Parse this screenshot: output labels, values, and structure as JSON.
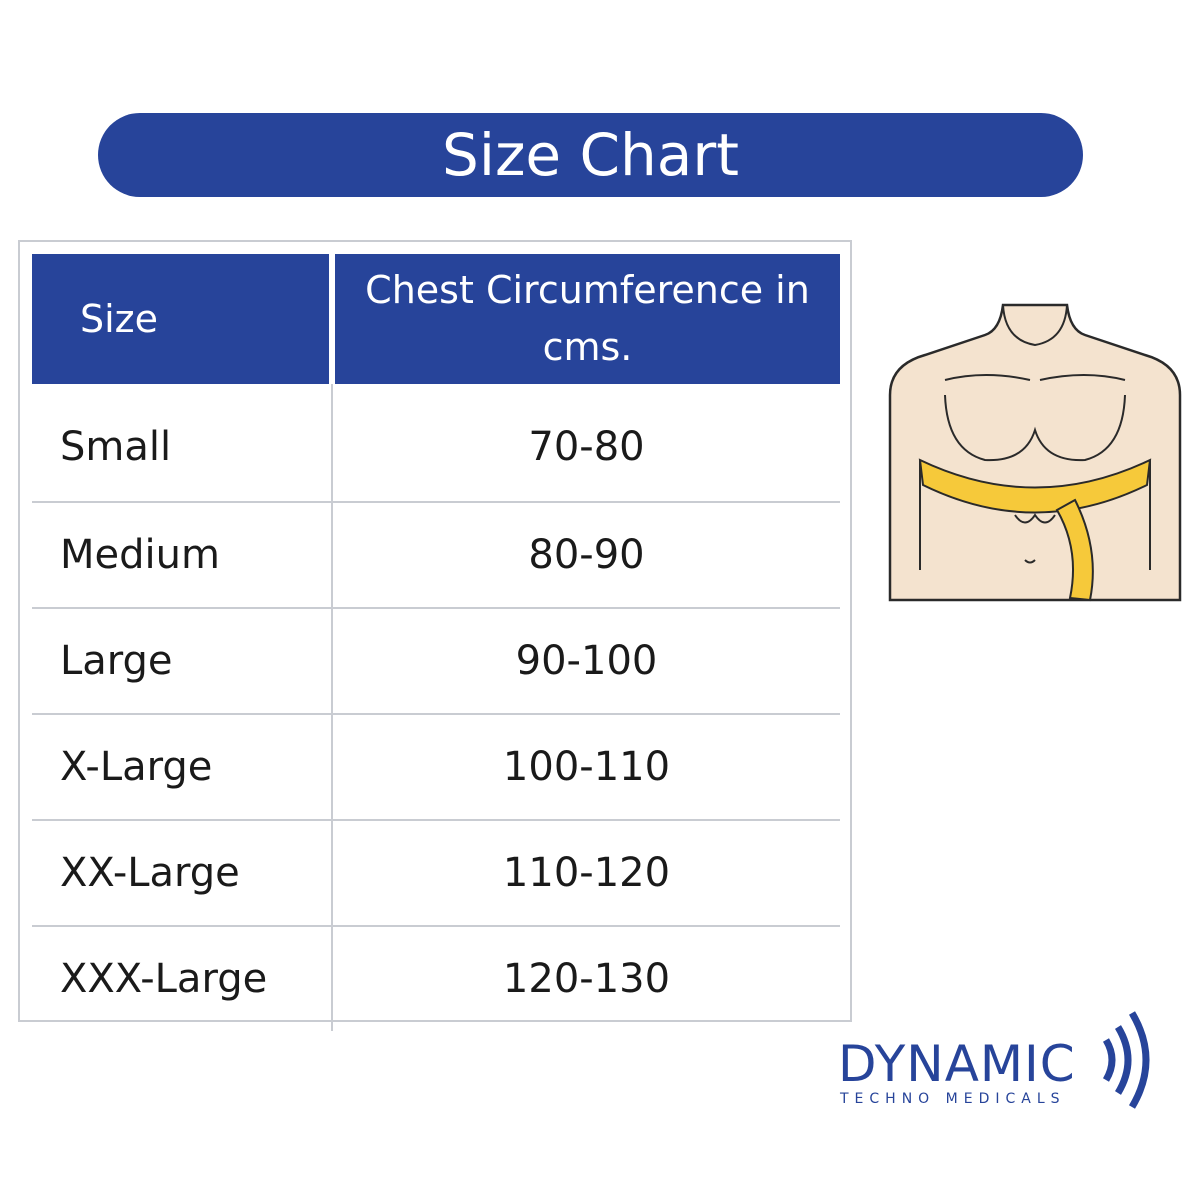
{
  "header": {
    "title": "Size Chart"
  },
  "table": {
    "columns": [
      "Size",
      "Chest Circumference in cms."
    ],
    "rows": [
      [
        "Small",
        "70-80"
      ],
      [
        "Medium",
        "80-90"
      ],
      [
        "Large",
        "90-100"
      ],
      [
        "X-Large",
        "100-110"
      ],
      [
        "XX-Large",
        "110-120"
      ],
      [
        "XXX-Large",
        "120-130"
      ]
    ]
  },
  "logo": {
    "name": "DYNAMIC",
    "tagline": "TECHNO MEDICALS"
  }
}
